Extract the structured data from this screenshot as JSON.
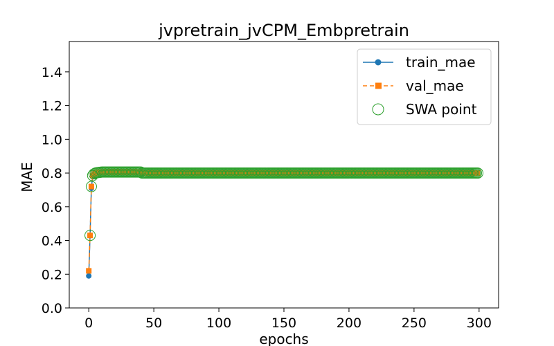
{
  "chart_data": {
    "type": "line",
    "title": "jvpretrain_jvCPM_Embpretrain",
    "xlabel": "epochs",
    "ylabel": "MAE",
    "xlim": [
      -15,
      315
    ],
    "ylim": [
      0,
      1.58
    ],
    "xticks": [
      0,
      50,
      100,
      150,
      200,
      250,
      300
    ],
    "yticks": [
      0.0,
      0.2,
      0.4,
      0.6,
      0.8,
      1.0,
      1.2,
      1.4
    ],
    "ytick_labels": [
      "0.0",
      "0.2",
      "0.4",
      "0.6",
      "0.8",
      "1.0",
      "1.2",
      "1.4"
    ],
    "grid": false,
    "legend_position": "top-right",
    "x_range": [
      0,
      299
    ],
    "head": {
      "x": [
        0,
        1,
        2,
        3,
        4,
        5,
        6,
        7,
        8,
        9
      ],
      "train_mae": [
        0.19,
        0.43,
        0.71,
        0.78,
        0.795,
        0.8,
        0.802,
        0.803,
        0.804,
        0.805
      ],
      "val_mae": [
        0.22,
        0.43,
        0.72,
        0.785,
        0.795,
        0.8,
        0.802,
        0.803,
        0.804,
        0.805
      ]
    },
    "plateau": {
      "from": 10,
      "to": 40,
      "value": 0.806,
      "final_value": 0.8
    },
    "series": [
      {
        "name": "train_mae",
        "color": "#1f77b4",
        "style": "solid",
        "marker": "circle"
      },
      {
        "name": "val_mae",
        "color": "#ff7f0e",
        "style": "dashed",
        "marker": "square"
      },
      {
        "name": "SWA point",
        "color": "#2ca02c",
        "style": "none",
        "marker": "hollow-circle"
      }
    ]
  }
}
